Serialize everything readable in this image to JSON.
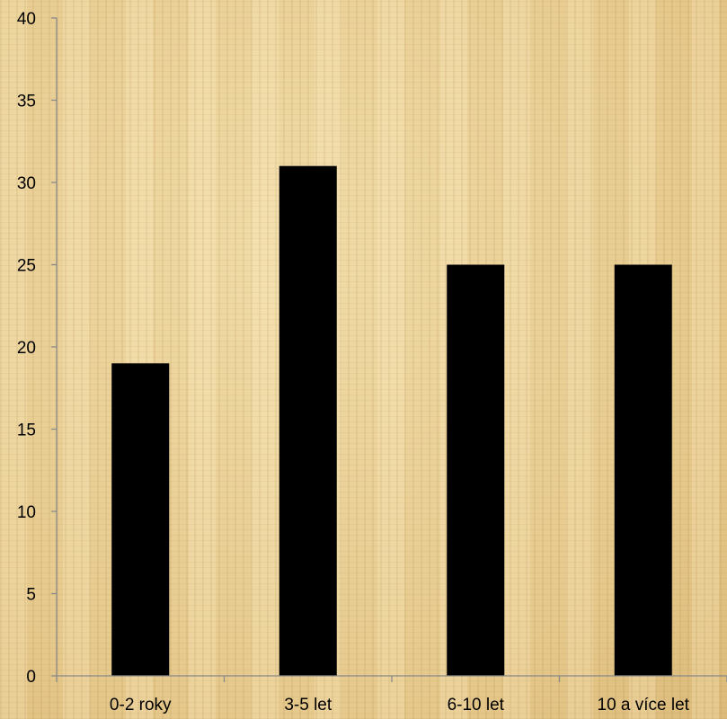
{
  "chart_data": {
    "type": "bar",
    "categories": [
      "0-2 roky",
      "3-5 let",
      "6-10 let",
      "10 a více let"
    ],
    "values": [
      19,
      31,
      25,
      25
    ],
    "title": "",
    "xlabel": "",
    "ylabel": "",
    "ylim": [
      0,
      40
    ],
    "yticks": [
      "0",
      "5",
      "10",
      "15",
      "20",
      "25",
      "30",
      "35",
      "40"
    ],
    "grid": false,
    "legend": "none",
    "bar_color": "#000000",
    "background": "papyrus"
  }
}
